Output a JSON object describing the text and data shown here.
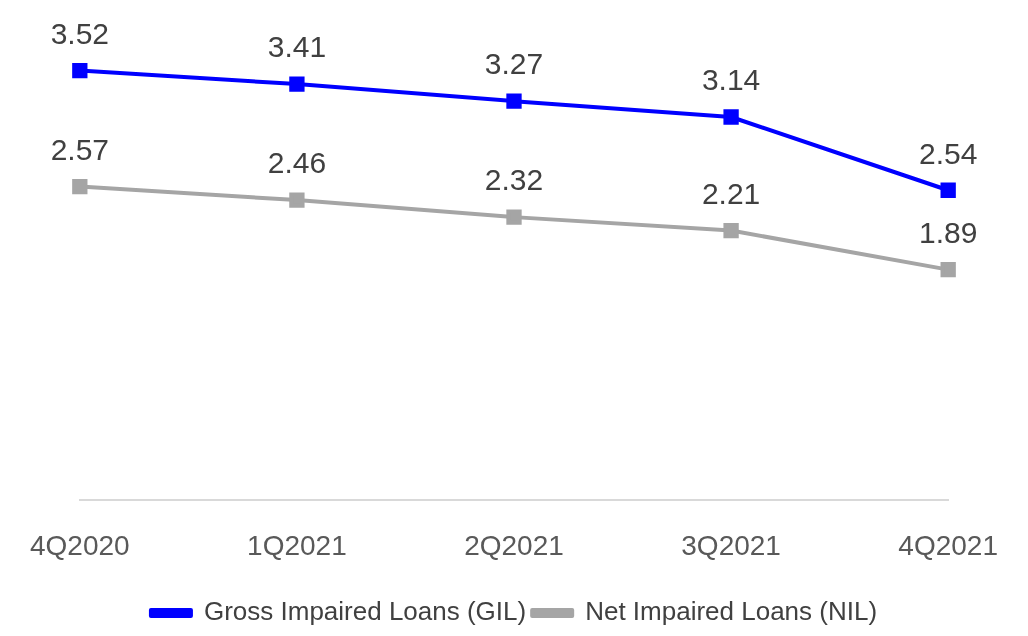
{
  "chart_data": {
    "type": "line",
    "categories": [
      "4Q2020",
      "1Q2021",
      "2Q2021",
      "3Q2021",
      "4Q2021"
    ],
    "series": [
      {
        "name": "Gross Impaired Loans (GIL)",
        "color": "#0000ff",
        "values": [
          3.52,
          3.41,
          3.27,
          3.14,
          2.54
        ]
      },
      {
        "name": "Net Impaired Loans (NIL)",
        "color": "#a5a5a5",
        "values": [
          2.57,
          2.46,
          2.32,
          2.21,
          1.89
        ]
      }
    ],
    "data_labels": true,
    "legend": "bottom",
    "grid": false,
    "marker": "square",
    "line_style": "solid",
    "tick_labels": "x"
  }
}
